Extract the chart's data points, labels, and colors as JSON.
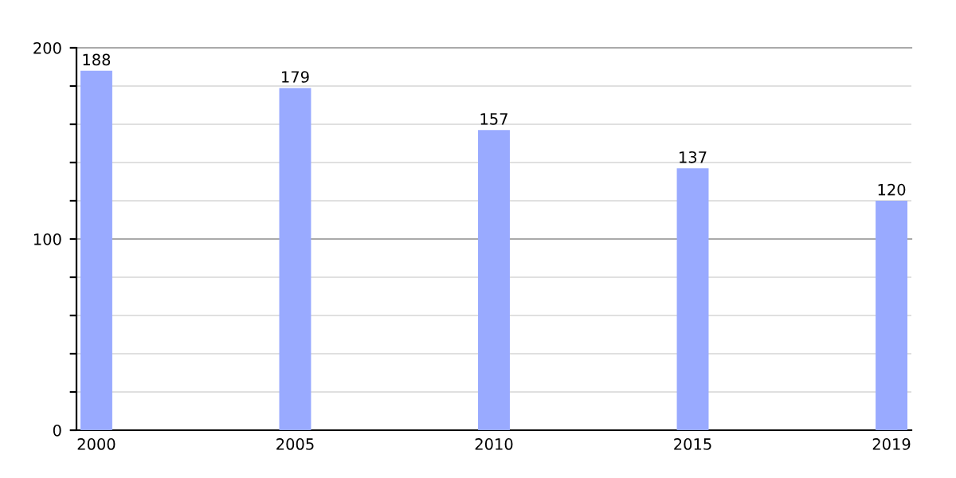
{
  "chart_data": {
    "type": "bar",
    "categories": [
      "2000",
      "2005",
      "2010",
      "2015",
      "2019"
    ],
    "values": [
      188,
      179,
      157,
      137,
      120
    ],
    "color": "#99aaff",
    "ylim": [
      0,
      200
    ],
    "yticks": [
      0,
      {
        "value": 20,
        "label": null
      },
      {
        "value": 40,
        "label": null
      },
      {
        "value": 60,
        "label": null
      },
      {
        "value": 80,
        "label": null
      },
      100,
      {
        "value": 120,
        "label": null
      },
      {
        "value": 140,
        "label": null
      },
      {
        "value": 160,
        "label": null
      },
      {
        "value": 180,
        "label": null
      },
      200
    ],
    "grid": "y",
    "ref_lines": [
      {
        "axis": "y",
        "value": 100,
        "color": "#aaaaaa"
      },
      {
        "axis": "y",
        "value": 200,
        "color": "#aaaaaa"
      }
    ],
    "data_labels": true
  }
}
